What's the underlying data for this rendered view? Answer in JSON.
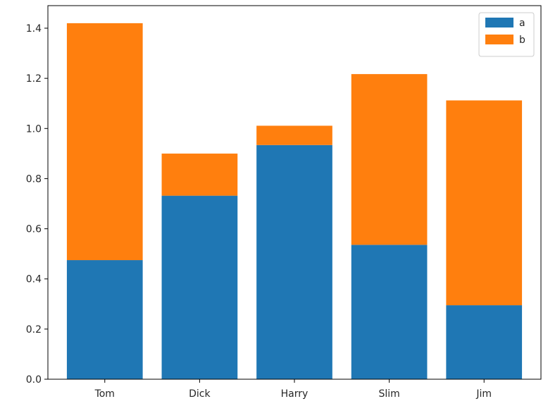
{
  "chart_data": {
    "type": "bar",
    "stacked": true,
    "categories": [
      "Tom",
      "Dick",
      "Harry",
      "Slim",
      "Jim"
    ],
    "series": [
      {
        "name": "a",
        "color": "#1f77b4",
        "values": [
          0.475,
          0.732,
          0.934,
          0.536,
          0.295
        ]
      },
      {
        "name": "b",
        "color": "#ff7f0e",
        "values": [
          0.945,
          0.168,
          0.077,
          0.681,
          0.817
        ]
      }
    ],
    "ylim": [
      0.0,
      1.49
    ],
    "yticks": [
      0.0,
      0.2,
      0.4,
      0.6,
      0.8,
      1.0,
      1.2,
      1.4
    ],
    "ytick_labels": [
      "0.0",
      "0.2",
      "0.4",
      "0.6",
      "0.8",
      "1.0",
      "1.2",
      "1.4"
    ],
    "title": "",
    "xlabel": "",
    "ylabel": "",
    "grid": false,
    "legend_position": "top-right"
  }
}
